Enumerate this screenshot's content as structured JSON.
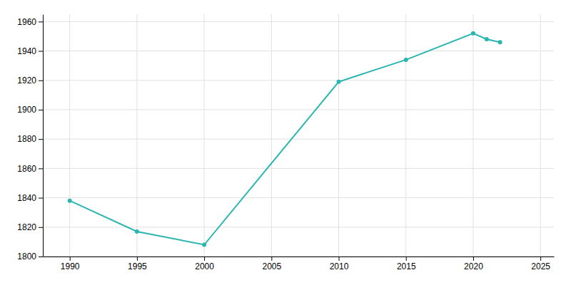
{
  "chart_data": {
    "type": "line",
    "x": [
      1990,
      1995,
      2000,
      2010,
      2015,
      2020,
      2021,
      2022
    ],
    "values": [
      1838,
      1817,
      1808,
      1919,
      1934,
      1952,
      1948,
      1946
    ],
    "color": "#2ab5b0",
    "marker": "circle",
    "xlim": [
      1988,
      2026
    ],
    "ylim": [
      1800,
      1965
    ],
    "xticks": [
      1990,
      1995,
      2000,
      2005,
      2010,
      2015,
      2020,
      2025
    ],
    "yticks": [
      1800,
      1820,
      1840,
      1860,
      1880,
      1900,
      1920,
      1940,
      1960
    ],
    "grid": true
  }
}
